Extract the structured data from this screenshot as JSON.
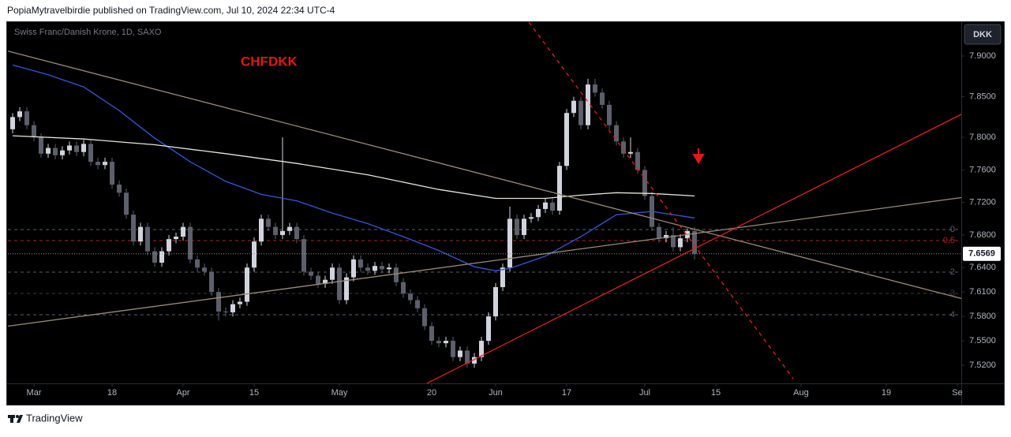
{
  "header": "PopiaMytravelbirdie published on TradingView.com, Jul 10, 2024 22:34 UTC-4",
  "footer": "TradingView",
  "chart_data": {
    "type": "candlestick",
    "title": "CHFDKK",
    "subtitle": "Swiss Franc/Danish Krone, 1D, SAXO",
    "currency": "DKK",
    "up_color": "#d1d4dc",
    "down_color": "#5d606b",
    "x": [
      0,
      1,
      2,
      3,
      4,
      5,
      6,
      7,
      8,
      9,
      10,
      11,
      12,
      13,
      14,
      15,
      16,
      17,
      18,
      19,
      20,
      21,
      22,
      23,
      24,
      25,
      26,
      27,
      28,
      29,
      30,
      31,
      32,
      33,
      34,
      35,
      36,
      37,
      38,
      39,
      40,
      41,
      42,
      43,
      44,
      45,
      46,
      47,
      48,
      49,
      50,
      51,
      52,
      53,
      54,
      55,
      56,
      57,
      58,
      59,
      60,
      61,
      62,
      63,
      64,
      65,
      66,
      67,
      68,
      69,
      70,
      71,
      72,
      73,
      74,
      75,
      76,
      77,
      78,
      79,
      80,
      81,
      82,
      83,
      84,
      85,
      86,
      87,
      88,
      89,
      90,
      91,
      92,
      93,
      94,
      95,
      96
    ],
    "open": [
      7.81,
      7.825,
      7.832,
      7.815,
      7.8,
      7.78,
      7.787,
      7.778,
      7.784,
      7.79,
      7.782,
      7.792,
      7.77,
      7.766,
      7.77,
      7.742,
      7.732,
      7.705,
      7.672,
      7.69,
      7.66,
      7.646,
      7.66,
      7.675,
      7.678,
      7.69,
      7.65,
      7.64,
      7.635,
      7.61,
      7.586,
      7.585,
      7.595,
      7.598,
      7.64,
      7.672,
      7.7,
      7.69,
      7.68,
      7.685,
      7.69,
      7.675,
      7.635,
      7.63,
      7.62,
      7.625,
      7.64,
      7.6,
      7.628,
      7.65,
      7.64,
      7.636,
      7.642,
      7.638,
      7.64,
      7.622,
      7.608,
      7.6,
      7.59,
      7.568,
      7.55,
      7.547,
      7.55,
      7.53,
      7.538,
      7.522,
      7.53,
      7.55,
      7.58,
      7.616,
      7.64,
      7.7,
      7.68,
      7.7,
      7.702,
      7.712,
      7.72,
      7.71,
      7.765,
      7.83,
      7.845,
      7.815,
      7.865,
      7.855,
      7.84,
      7.815,
      7.795,
      7.78,
      7.782,
      7.76,
      7.728,
      7.69,
      7.676,
      7.68,
      7.665,
      7.676,
      7.685
    ],
    "high": [
      7.83,
      7.837,
      7.837,
      7.82,
      7.805,
      7.792,
      7.792,
      7.789,
      7.795,
      7.795,
      7.797,
      7.797,
      7.775,
      7.775,
      7.775,
      7.747,
      7.737,
      7.71,
      7.695,
      7.695,
      7.665,
      7.665,
      7.68,
      7.683,
      7.695,
      7.695,
      7.655,
      7.645,
      7.64,
      7.615,
      7.591,
      7.6,
      7.603,
      7.645,
      7.677,
      7.705,
      7.705,
      7.695,
      7.8,
      7.695,
      7.695,
      7.68,
      7.64,
      7.635,
      7.63,
      7.645,
      7.645,
      7.633,
      7.655,
      7.655,
      7.645,
      7.647,
      7.647,
      7.645,
      7.645,
      7.627,
      7.613,
      7.605,
      7.595,
      7.573,
      7.555,
      7.555,
      7.555,
      7.543,
      7.543,
      7.535,
      7.555,
      7.585,
      7.621,
      7.645,
      7.715,
      7.705,
      7.705,
      7.707,
      7.717,
      7.725,
      7.725,
      7.77,
      7.835,
      7.85,
      7.85,
      7.872,
      7.872,
      7.86,
      7.845,
      7.82,
      7.8,
      7.8,
      7.787,
      7.765,
      7.733,
      7.695,
      7.685,
      7.69,
      7.681,
      7.688,
      7.69
    ],
    "low": [
      7.805,
      7.82,
      7.81,
      7.795,
      7.775,
      7.775,
      7.773,
      7.773,
      7.779,
      7.777,
      7.777,
      7.765,
      7.761,
      7.761,
      7.737,
      7.727,
      7.7,
      7.667,
      7.667,
      7.655,
      7.641,
      7.641,
      7.655,
      7.67,
      7.673,
      7.645,
      7.635,
      7.63,
      7.605,
      7.575,
      7.58,
      7.58,
      7.59,
      7.593,
      7.635,
      7.667,
      7.685,
      7.675,
      7.675,
      7.68,
      7.67,
      7.63,
      7.625,
      7.615,
      7.615,
      7.62,
      7.595,
      7.595,
      7.623,
      7.635,
      7.631,
      7.631,
      7.633,
      7.633,
      7.617,
      7.603,
      7.595,
      7.585,
      7.563,
      7.545,
      7.542,
      7.542,
      7.525,
      7.525,
      7.517,
      7.517,
      7.525,
      7.545,
      7.575,
      7.611,
      7.635,
      7.675,
      7.675,
      7.695,
      7.697,
      7.707,
      7.705,
      7.705,
      7.76,
      7.825,
      7.81,
      7.81,
      7.85,
      7.835,
      7.81,
      7.79,
      7.775,
      7.775,
      7.755,
      7.723,
      7.685,
      7.671,
      7.671,
      7.66,
      7.66,
      7.671,
      7.65
    ],
    "close": [
      7.825,
      7.832,
      7.815,
      7.8,
      7.78,
      7.787,
      7.778,
      7.784,
      7.79,
      7.782,
      7.792,
      7.77,
      7.766,
      7.77,
      7.742,
      7.732,
      7.705,
      7.672,
      7.69,
      7.66,
      7.646,
      7.66,
      7.675,
      7.678,
      7.69,
      7.65,
      7.64,
      7.635,
      7.61,
      7.586,
      7.585,
      7.595,
      7.598,
      7.64,
      7.672,
      7.7,
      7.69,
      7.68,
      7.685,
      7.69,
      7.675,
      7.635,
      7.63,
      7.62,
      7.625,
      7.64,
      7.6,
      7.628,
      7.65,
      7.64,
      7.636,
      7.642,
      7.638,
      7.64,
      7.622,
      7.608,
      7.6,
      7.59,
      7.568,
      7.55,
      7.547,
      7.55,
      7.53,
      7.538,
      7.522,
      7.53,
      7.55,
      7.58,
      7.616,
      7.64,
      7.7,
      7.68,
      7.7,
      7.702,
      7.712,
      7.72,
      7.71,
      7.765,
      7.83,
      7.845,
      7.815,
      7.865,
      7.855,
      7.84,
      7.815,
      7.795,
      7.78,
      7.782,
      7.76,
      7.728,
      7.69,
      7.676,
      7.68,
      7.665,
      7.676,
      7.685,
      7.6569
    ],
    "xlim": [
      -0.67,
      133.56
    ],
    "xticks": [
      {
        "value": 3,
        "label": "Mar"
      },
      {
        "value": 14,
        "label": "18"
      },
      {
        "value": 24,
        "label": "Apr"
      },
      {
        "value": 34,
        "label": "15"
      },
      {
        "value": 46,
        "label": "May"
      },
      {
        "value": 59,
        "label": "20"
      },
      {
        "value": 68,
        "label": "Jun"
      },
      {
        "value": 78,
        "label": "17"
      },
      {
        "value": 89,
        "label": "Jul"
      },
      {
        "value": 99,
        "label": "15"
      },
      {
        "value": 111,
        "label": "Aug"
      },
      {
        "value": 123,
        "label": "19"
      },
      {
        "value": 133,
        "label": "Se"
      }
    ],
    "ylim": [
      7.4977,
      7.9417
    ],
    "yticks": [
      {
        "value": 7.9,
        "label": "7.9000"
      },
      {
        "value": 7.85,
        "label": "7.8500"
      },
      {
        "value": 7.8,
        "label": "7.8000"
      },
      {
        "value": 7.76,
        "label": "7.7600"
      },
      {
        "value": 7.72,
        "label": "7.7200"
      },
      {
        "value": 7.68,
        "label": "7.6800"
      },
      {
        "value": 7.64,
        "label": "7.6400"
      },
      {
        "value": 7.61,
        "label": "7.6100"
      },
      {
        "value": 7.58,
        "label": "7.5800"
      },
      {
        "value": 7.55,
        "label": "7.5500"
      },
      {
        "value": 7.52,
        "label": "7.5200"
      }
    ],
    "overlays": [
      {
        "color": "#3656d6",
        "dash": false,
        "x": [
          0,
          5,
          10,
          15,
          20,
          25,
          30,
          35,
          40,
          45,
          50,
          55,
          60,
          65,
          68,
          70,
          75,
          80,
          85,
          90,
          96
        ],
        "values": [
          7.889,
          7.877,
          7.862,
          7.833,
          7.799,
          7.77,
          7.746,
          7.73,
          7.722,
          7.707,
          7.694,
          7.678,
          7.661,
          7.641,
          7.636,
          7.639,
          7.654,
          7.678,
          7.705,
          7.709,
          7.701
        ]
      },
      {
        "color": "#e6e4d8",
        "dash": false,
        "x": [
          0,
          10,
          20,
          30,
          40,
          50,
          60,
          68,
          75,
          80,
          85,
          90,
          96
        ],
        "values": [
          7.802,
          7.798,
          7.791,
          7.78,
          7.768,
          7.754,
          7.736,
          7.725,
          7.725,
          7.729,
          7.732,
          7.731,
          7.728
        ]
      },
      {
        "color": "#9a8b78",
        "dash": false,
        "x": [
          -0.67,
          133.56
        ],
        "values": [
          7.906,
          7.602
        ]
      },
      {
        "color": "#9a8b78",
        "dash": false,
        "x": [
          -0.67,
          133.56
        ],
        "values": [
          7.568,
          7.726
        ]
      },
      {
        "color": "#e0201c",
        "dash": false,
        "x": [
          58.33,
          133.56
        ],
        "values": [
          7.4978,
          7.8283
        ]
      },
      {
        "color": "#e0201c",
        "dash": true,
        "x": [
          72.67,
          109.9
        ],
        "values": [
          7.9417,
          7.5035
        ]
      }
    ],
    "levels": [
      {
        "label": "0",
        "price": 7.6867,
        "color": "#5d606b"
      },
      {
        "label": "0.5",
        "price": 7.6732,
        "color": "#b22222"
      },
      {
        "label": "2",
        "price": 7.6344,
        "color": "#5d606b"
      },
      {
        "label": "3",
        "price": 7.6082,
        "color": "#3a3d45"
      },
      {
        "label": "4",
        "price": 7.582,
        "color": "#5d606b"
      }
    ]
  }
}
